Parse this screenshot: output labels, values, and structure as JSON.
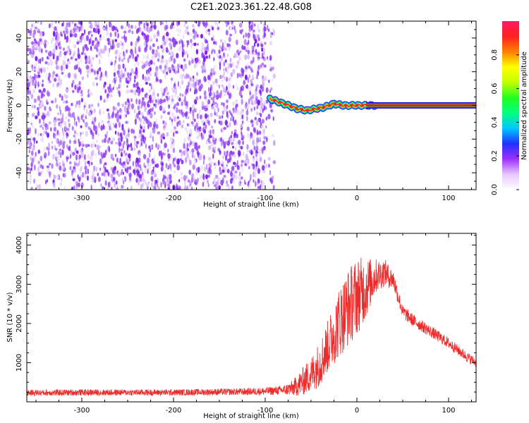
{
  "title": "C2E1.2023.361.22.48.G08",
  "colors": {
    "frame": "#000000",
    "snr_line": "#ee2b2b",
    "track": "#ff1a1a",
    "scatter": "#7a1cf2"
  },
  "chart_data": [
    {
      "type": "heatmap",
      "xlabel": "Height of straight line (km)",
      "ylabel": "Frequency (Hz)",
      "xlim": [
        -360,
        130
      ],
      "ylim": [
        -50,
        50
      ],
      "xticks": [
        -300,
        -200,
        -100,
        0,
        100
      ],
      "yticks": [
        -40,
        -20,
        0,
        20,
        40
      ],
      "noise_region_x": [
        -360,
        -90
      ],
      "signal_track": {
        "x": [
          -95,
          -85,
          -75,
          -65,
          -55,
          -45,
          -35,
          -25,
          -15,
          -5,
          5,
          15,
          130
        ],
        "y": [
          4,
          2,
          0,
          -2,
          -3,
          -2,
          -1,
          1,
          0,
          0,
          0,
          0,
          0
        ]
      },
      "colorbar": {
        "label": "Normalized spectral amplitude",
        "range": [
          0,
          1
        ],
        "ticks": [
          "0.0",
          "0.2",
          "0.4",
          "0.6",
          "0.8"
        ],
        "colormap": [
          "#ffffff",
          "#e8c8ff",
          "#9b30ff",
          "#2030ff",
          "#00c8ff",
          "#00ff80",
          "#20ff20",
          "#c0ff00",
          "#ffff00",
          "#ff8000",
          "#ff2020",
          "#ff1a60"
        ]
      }
    },
    {
      "type": "line",
      "xlabel": "Height of straight line (km)",
      "ylabel": "SNR (10 * v/v)",
      "xlim": [
        -360,
        130
      ],
      "ylim": [
        0,
        4300
      ],
      "xticks": [
        -300,
        -200,
        -100,
        0,
        100
      ],
      "yticks": [
        1000,
        2000,
        3000,
        4000
      ],
      "series": [
        {
          "x": [
            -360,
            -300,
            -200,
            -120,
            -100,
            -80,
            -70,
            -60,
            -50,
            -40,
            -30,
            -20,
            -10,
            0,
            10,
            20,
            30,
            40,
            45,
            50,
            60,
            80,
            100,
            120,
            130
          ],
          "y": [
            230,
            240,
            240,
            260,
            270,
            300,
            350,
            500,
            700,
            1000,
            1500,
            2000,
            2400,
            2700,
            2900,
            3200,
            3300,
            3100,
            2700,
            2300,
            2100,
            1800,
            1500,
            1150,
            1000
          ],
          "y_spread": [
            80,
            80,
            80,
            90,
            100,
            120,
            200,
            350,
            450,
            600,
            700,
            900,
            1000,
            1000,
            800,
            450,
            350,
            250,
            220,
            180,
            160,
            150,
            140,
            130,
            120
          ]
        }
      ]
    }
  ]
}
